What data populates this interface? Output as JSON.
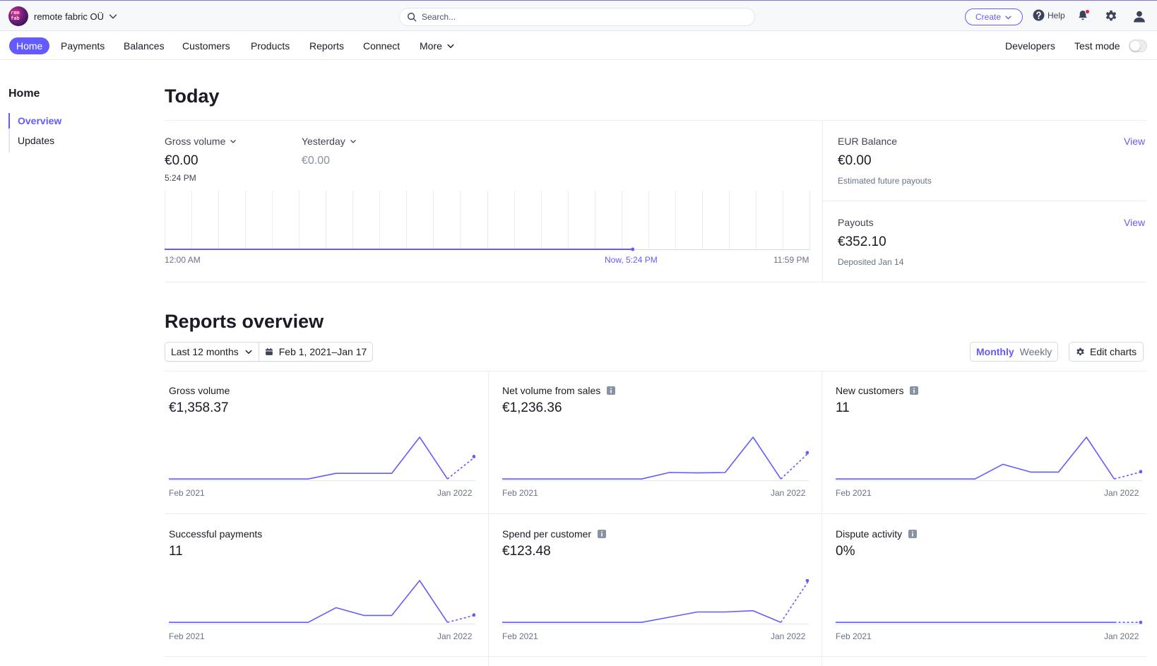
{
  "topbar": {
    "account_name": "remote fabric OÜ",
    "search_placeholder": "Search...",
    "create_label": "Create",
    "help_label": "Help",
    "accent": "#635bff",
    "notification_color": "#df1b41"
  },
  "nav": {
    "items": [
      "Home",
      "Payments",
      "Balances",
      "Customers",
      "Products",
      "Reports",
      "Connect",
      "More"
    ],
    "developers": "Developers",
    "test_mode": "Test mode"
  },
  "sidebar": {
    "title": "Home",
    "items": [
      "Overview",
      "Updates"
    ]
  },
  "today": {
    "title": "Today",
    "gross_label": "Gross volume",
    "gross_value": "€0.00",
    "gross_time": "5:24 PM",
    "yesterday_label": "Yesterday",
    "yesterday_value": "€0.00",
    "x_start": "12:00 AM",
    "x_now": "Now, 5:24 PM",
    "x_end": "11:59 PM",
    "now_fraction": 0.725,
    "balance_label": "EUR Balance",
    "balance_value": "€0.00",
    "balance_sub": "Estimated future payouts",
    "payouts_label": "Payouts",
    "payouts_value": "€352.10",
    "payouts_sub": "Deposited Jan 14",
    "view_label": "View"
  },
  "reports": {
    "title": "Reports overview",
    "range_label": "Last 12 months",
    "date_range": "Feb 1, 2021–Jan 17",
    "monthly": "Monthly",
    "weekly": "Weekly",
    "edit_charts": "Edit charts"
  },
  "chart_data": [
    {
      "type": "line",
      "title": "Gross volume",
      "value": "€1,358.37",
      "x_start": "Feb 2021",
      "x_end": "Jan 2022",
      "info": false,
      "values": [
        0.03,
        0.03,
        0.03,
        0.03,
        0.03,
        0.03,
        0.16,
        0.16,
        0.16,
        1.0,
        0.03,
        0.55
      ]
    },
    {
      "type": "line",
      "title": "Net volume from sales",
      "value": "€1,236.36",
      "x_start": "Feb 2021",
      "x_end": "Jan 2022",
      "info": true,
      "values": [
        0.03,
        0.03,
        0.03,
        0.03,
        0.03,
        0.03,
        0.18,
        0.17,
        0.18,
        1.0,
        0.03,
        0.64
      ]
    },
    {
      "type": "line",
      "title": "New customers",
      "value": "11",
      "x_start": "Feb 2021",
      "x_end": "Jan 2022",
      "info": true,
      "values": [
        0.03,
        0.03,
        0.03,
        0.03,
        0.03,
        0.03,
        0.37,
        0.19,
        0.19,
        1.0,
        0.03,
        0.2
      ]
    },
    {
      "type": "line",
      "title": "Successful payments",
      "value": "11",
      "x_start": "Feb 2021",
      "x_end": "Jan 2022",
      "info": false,
      "values": [
        0.03,
        0.03,
        0.03,
        0.03,
        0.03,
        0.03,
        0.37,
        0.19,
        0.19,
        1.0,
        0.03,
        0.2
      ]
    },
    {
      "type": "line",
      "title": "Spend per customer",
      "value": "€123.48",
      "x_start": "Feb 2021",
      "x_end": "Jan 2022",
      "info": true,
      "values": [
        0.03,
        0.03,
        0.03,
        0.03,
        0.03,
        0.03,
        0.15,
        0.27,
        0.27,
        0.3,
        0.03,
        1.0
      ]
    },
    {
      "type": "line",
      "title": "Dispute activity",
      "value": "0%",
      "x_start": "Feb 2021",
      "x_end": "Jan 2022",
      "info": true,
      "values": [
        0.03,
        0.03,
        0.03,
        0.03,
        0.03,
        0.03,
        0.03,
        0.03,
        0.03,
        0.03,
        0.03,
        0.03
      ]
    }
  ]
}
